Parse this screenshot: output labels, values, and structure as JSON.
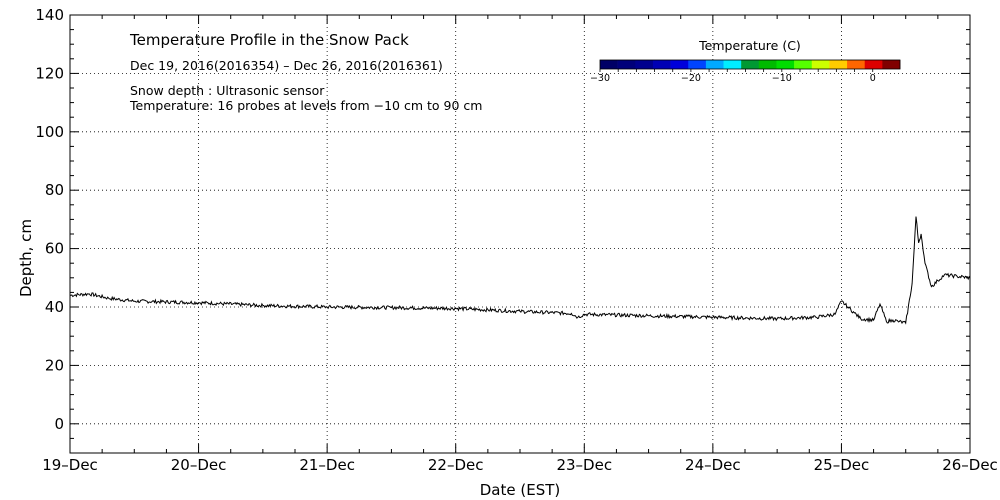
{
  "chart_data": {
    "type": "line",
    "title": "Temperature Profile in the Snow Pack",
    "subtitle": "Dec 19, 2016(2016354) – Dec 26, 2016(2016361)",
    "notes": [
      "Snow depth : Ultrasonic sensor",
      "Temperature: 16 probes at levels from −10 cm to 90 cm"
    ],
    "xlabel": "Date (EST)",
    "ylabel": "Depth, cm",
    "xlim": [
      0,
      7
    ],
    "ylim": [
      -10,
      140
    ],
    "x_ticks": [
      {
        "value": 0,
        "label": "19–Dec"
      },
      {
        "value": 1,
        "label": "20–Dec"
      },
      {
        "value": 2,
        "label": "21–Dec"
      },
      {
        "value": 3,
        "label": "22–Dec"
      },
      {
        "value": 4,
        "label": "23–Dec"
      },
      {
        "value": 5,
        "label": "24–Dec"
      },
      {
        "value": 6,
        "label": "25–Dec"
      },
      {
        "value": 7,
        "label": "26–Dec"
      }
    ],
    "y_ticks": [
      {
        "value": 0,
        "label": "0"
      },
      {
        "value": 20,
        "label": "20"
      },
      {
        "value": 40,
        "label": "40"
      },
      {
        "value": 60,
        "label": "60"
      },
      {
        "value": 80,
        "label": "80"
      },
      {
        "value": 100,
        "label": "100"
      },
      {
        "value": 120,
        "label": "120"
      },
      {
        "value": 140,
        "label": "140"
      }
    ],
    "grid": true,
    "series": [
      {
        "name": "Snow depth",
        "color": "#000000",
        "x": [
          0,
          0.15,
          0.3,
          0.5,
          1.0,
          1.5,
          2.0,
          2.5,
          3.0,
          3.5,
          3.9,
          3.95,
          4.0,
          4.5,
          5.0,
          5.5,
          5.8,
          5.95,
          6.0,
          6.05,
          6.1,
          6.15,
          6.25,
          6.3,
          6.35,
          6.4,
          6.45,
          6.5,
          6.55,
          6.58,
          6.6,
          6.62,
          6.65,
          6.7,
          6.75,
          6.8,
          6.9,
          7.0
        ],
        "y": [
          44,
          44.5,
          43,
          42,
          41.5,
          40.5,
          40,
          39.8,
          39.5,
          38.5,
          37.8,
          36.5,
          37.5,
          37,
          36.5,
          36,
          36.5,
          37.5,
          42,
          40,
          38,
          36,
          35.5,
          41,
          35,
          35.5,
          35,
          34.5,
          48,
          71,
          62,
          65,
          55,
          47,
          49,
          51,
          50.5,
          50
        ]
      }
    ],
    "colorbar": {
      "title": "Temperature (C)",
      "range": [
        -30,
        3
      ],
      "tick_labels": [
        {
          "value": -30,
          "label": "−30"
        },
        {
          "value": -20,
          "label": "−20"
        },
        {
          "value": -10,
          "label": "−10"
        },
        {
          "value": 0,
          "label": "0"
        }
      ],
      "colors": [
        "#000066",
        "#00007a",
        "#00008e",
        "#0000b4",
        "#0000dc",
        "#0044ff",
        "#00aaff",
        "#00eeff",
        "#009933",
        "#00bb00",
        "#00dd00",
        "#55ff00",
        "#ccff00",
        "#ffcc00",
        "#ff6600",
        "#dd0000",
        "#800000"
      ]
    }
  }
}
